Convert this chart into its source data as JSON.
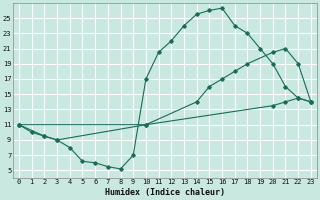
{
  "xlabel": "Humidex (Indice chaleur)",
  "bg_color": "#c8e8e0",
  "grid_color": "#ffffff",
  "line_color": "#1a6b5a",
  "xlim": [
    -0.5,
    23.5
  ],
  "ylim": [
    4,
    27
  ],
  "xticks": [
    0,
    1,
    2,
    3,
    4,
    5,
    6,
    7,
    8,
    9,
    10,
    11,
    12,
    13,
    14,
    15,
    16,
    17,
    18,
    19,
    20,
    21,
    22,
    23
  ],
  "yticks": [
    5,
    7,
    9,
    11,
    13,
    15,
    17,
    19,
    21,
    23,
    25
  ],
  "curve1_x": [
    0,
    1,
    2,
    3,
    4,
    5,
    6,
    7,
    8,
    9,
    10,
    11,
    12,
    13,
    14,
    15,
    16,
    17,
    18,
    19,
    20,
    21,
    22,
    23
  ],
  "curve1_y": [
    11,
    10,
    9.5,
    9,
    8,
    6.2,
    6,
    5.5,
    5.2,
    7,
    17,
    20.5,
    22,
    24,
    25.5,
    26,
    26.3,
    24,
    23,
    21,
    19,
    16,
    14.5,
    14
  ],
  "curve2_x": [
    0,
    2,
    3,
    10,
    14,
    15,
    16,
    17,
    18,
    20,
    21,
    22,
    23
  ],
  "curve2_y": [
    11,
    9.5,
    9,
    11,
    14,
    16,
    17,
    18,
    19,
    20.5,
    21,
    19,
    14
  ],
  "curve3_x": [
    0,
    10,
    20,
    21,
    22,
    23
  ],
  "curve3_y": [
    11,
    11,
    13.5,
    14,
    14.5,
    14
  ]
}
